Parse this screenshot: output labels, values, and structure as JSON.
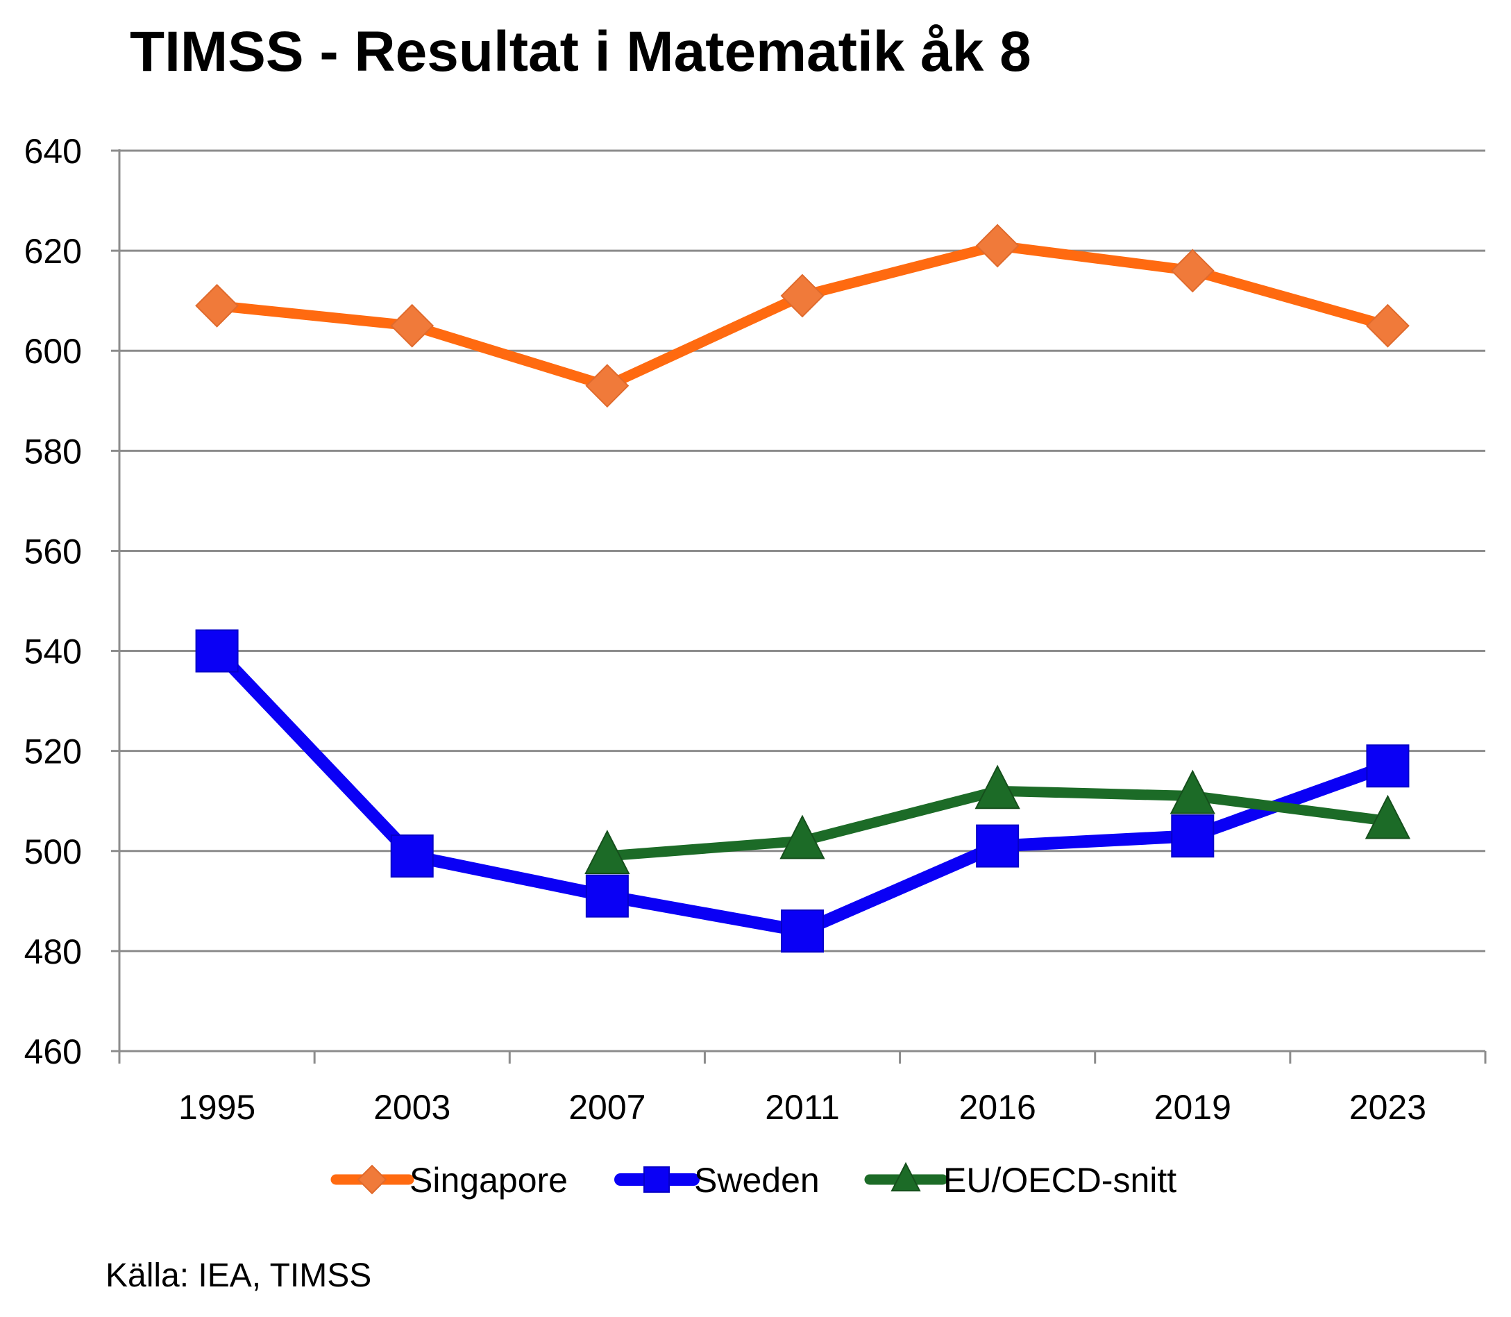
{
  "title": "TIMSS - Resultat i Matematik åk 8",
  "source": "Källa: IEA, TIMSS",
  "chart_data": {
    "type": "line",
    "title": "TIMSS - Resultat i Matematik åk 8",
    "xlabel": "",
    "ylabel": "",
    "categories": [
      "1995",
      "2003",
      "2007",
      "2011",
      "2016",
      "2019",
      "2023"
    ],
    "ylim": [
      460,
      640
    ],
    "yticks": [
      460,
      480,
      500,
      520,
      540,
      560,
      580,
      600,
      620,
      640
    ],
    "grid": "horizontal",
    "legend_position": "bottom",
    "series": [
      {
        "name": "Singapore",
        "color": "#FF6A10",
        "marker": "diamond",
        "values": [
          609,
          605,
          593,
          611,
          621,
          616,
          605
        ]
      },
      {
        "name": "Sweden",
        "color": "#0A00F5",
        "marker": "square",
        "values": [
          540,
          499,
          491,
          484,
          501,
          503,
          517
        ]
      },
      {
        "name": "EU/OECD-snitt",
        "color": "#1C6B27",
        "marker": "triangle",
        "values": [
          null,
          null,
          499,
          502,
          512,
          511,
          506
        ]
      }
    ]
  }
}
